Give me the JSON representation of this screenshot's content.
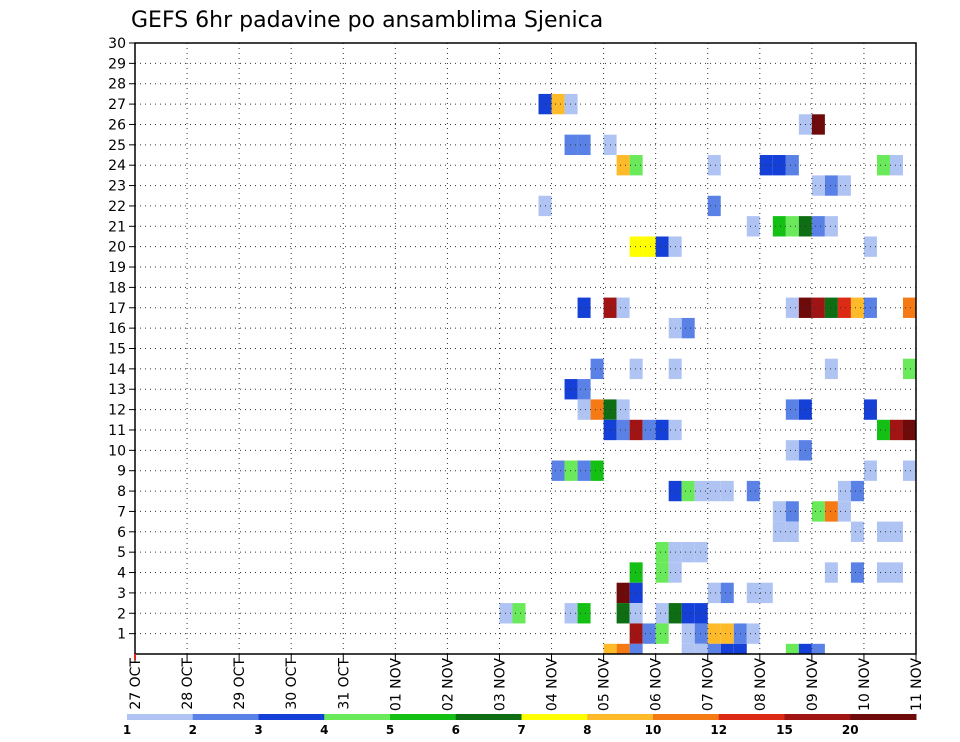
{
  "chart_data": {
    "type": "heatmap",
    "title": "GEFS 6hr padavine po ansamblima Sjenica",
    "x_tick_labels": [
      "27 OCT",
      "28 OCT",
      "29 OCT",
      "30 OCT",
      "31 OCT",
      "01 NOV",
      "02 NOV",
      "03 NOV",
      "04 NOV",
      "05 NOV",
      "06 NOV",
      "07 NOV",
      "08 NOV",
      "09 NOV",
      "10 NOV",
      "11 NOV"
    ],
    "xlim": [
      0,
      15
    ],
    "ylim": [
      0,
      30
    ],
    "y_ticks": [
      1,
      2,
      3,
      4,
      5,
      6,
      7,
      8,
      9,
      10,
      11,
      12,
      13,
      14,
      15,
      16,
      17,
      18,
      19,
      20,
      21,
      22,
      23,
      24,
      25,
      26,
      27,
      28,
      29,
      30
    ],
    "grid": true,
    "colorbar": {
      "placement": "bottom",
      "labels": [
        "1",
        "2",
        "3",
        "4",
        "5",
        "6",
        "7",
        "8",
        "10",
        "12",
        "15",
        "20"
      ],
      "colors": [
        "#b0c4f4",
        "#5a82e6",
        "#1540d8",
        "#6aea5a",
        "#14c014",
        "#0f6e14",
        "#ffff00",
        "#ffba2a",
        "#f57a14",
        "#dc2a14",
        "#a01414",
        "#6e0a0a"
      ]
    },
    "cell_width_days": 0.25,
    "cells": [
      {
        "m": 27,
        "d": 7.75,
        "v": 3
      },
      {
        "m": 27,
        "d": 8.0,
        "v": 8
      },
      {
        "m": 27,
        "d": 8.25,
        "v": 1
      },
      {
        "m": 26,
        "d": 12.75,
        "v": 1
      },
      {
        "m": 26,
        "d": 13.0,
        "v": 20
      },
      {
        "m": 25,
        "d": 8.25,
        "v": 2
      },
      {
        "m": 25,
        "d": 8.5,
        "v": 2
      },
      {
        "m": 25,
        "d": 9.0,
        "v": 1
      },
      {
        "m": 24,
        "d": 9.25,
        "v": 8
      },
      {
        "m": 24,
        "d": 9.5,
        "v": 4
      },
      {
        "m": 24,
        "d": 11.0,
        "v": 1
      },
      {
        "m": 24,
        "d": 12.0,
        "v": 3
      },
      {
        "m": 24,
        "d": 12.25,
        "v": 3
      },
      {
        "m": 24,
        "d": 12.5,
        "v": 2
      },
      {
        "m": 24,
        "d": 14.25,
        "v": 4
      },
      {
        "m": 24,
        "d": 14.5,
        "v": 1
      },
      {
        "m": 23,
        "d": 13.0,
        "v": 1
      },
      {
        "m": 23,
        "d": 13.25,
        "v": 2
      },
      {
        "m": 23,
        "d": 13.5,
        "v": 1
      },
      {
        "m": 22,
        "d": 7.75,
        "v": 1
      },
      {
        "m": 22,
        "d": 11.0,
        "v": 2
      },
      {
        "m": 21,
        "d": 11.75,
        "v": 1
      },
      {
        "m": 21,
        "d": 12.25,
        "v": 5
      },
      {
        "m": 21,
        "d": 12.5,
        "v": 4
      },
      {
        "m": 21,
        "d": 12.75,
        "v": 6
      },
      {
        "m": 21,
        "d": 13.0,
        "v": 2
      },
      {
        "m": 21,
        "d": 13.25,
        "v": 1
      },
      {
        "m": 20,
        "d": 9.5,
        "v": 7
      },
      {
        "m": 20,
        "d": 9.75,
        "v": 7
      },
      {
        "m": 20,
        "d": 10.0,
        "v": 3
      },
      {
        "m": 20,
        "d": 10.25,
        "v": 1
      },
      {
        "m": 20,
        "d": 14.0,
        "v": 1
      },
      {
        "m": 17,
        "d": 8.5,
        "v": 3
      },
      {
        "m": 17,
        "d": 9.0,
        "v": 15
      },
      {
        "m": 17,
        "d": 9.25,
        "v": 1
      },
      {
        "m": 17,
        "d": 12.5,
        "v": 1
      },
      {
        "m": 17,
        "d": 12.75,
        "v": 20
      },
      {
        "m": 17,
        "d": 13.0,
        "v": 15
      },
      {
        "m": 17,
        "d": 13.25,
        "v": 6
      },
      {
        "m": 17,
        "d": 13.5,
        "v": 12
      },
      {
        "m": 17,
        "d": 13.75,
        "v": 8
      },
      {
        "m": 17,
        "d": 14.0,
        "v": 2
      },
      {
        "m": 17,
        "d": 14.75,
        "v": 10
      },
      {
        "m": 16,
        "d": 10.25,
        "v": 1
      },
      {
        "m": 16,
        "d": 10.5,
        "v": 2
      },
      {
        "m": 14,
        "d": 8.75,
        "v": 2
      },
      {
        "m": 14,
        "d": 9.5,
        "v": 1
      },
      {
        "m": 14,
        "d": 10.25,
        "v": 1
      },
      {
        "m": 14,
        "d": 13.25,
        "v": 1
      },
      {
        "m": 14,
        "d": 14.75,
        "v": 4
      },
      {
        "m": 13,
        "d": 8.25,
        "v": 3
      },
      {
        "m": 13,
        "d": 8.5,
        "v": 2
      },
      {
        "m": 12,
        "d": 8.5,
        "v": 1
      },
      {
        "m": 12,
        "d": 8.75,
        "v": 10
      },
      {
        "m": 12,
        "d": 9.0,
        "v": 6
      },
      {
        "m": 12,
        "d": 9.25,
        "v": 1
      },
      {
        "m": 12,
        "d": 12.5,
        "v": 2
      },
      {
        "m": 12,
        "d": 12.75,
        "v": 3
      },
      {
        "m": 12,
        "d": 14.0,
        "v": 3
      },
      {
        "m": 11,
        "d": 9.0,
        "v": 3
      },
      {
        "m": 11,
        "d": 9.25,
        "v": 2
      },
      {
        "m": 11,
        "d": 9.5,
        "v": 15
      },
      {
        "m": 11,
        "d": 9.75,
        "v": 2
      },
      {
        "m": 11,
        "d": 10.0,
        "v": 3
      },
      {
        "m": 11,
        "d": 10.25,
        "v": 1
      },
      {
        "m": 11,
        "d": 14.25,
        "v": 5
      },
      {
        "m": 11,
        "d": 14.5,
        "v": 15
      },
      {
        "m": 11,
        "d": 14.75,
        "v": 20
      },
      {
        "m": 10,
        "d": 12.5,
        "v": 1
      },
      {
        "m": 10,
        "d": 12.75,
        "v": 2
      },
      {
        "m": 9,
        "d": 8.0,
        "v": 2
      },
      {
        "m": 9,
        "d": 8.25,
        "v": 4
      },
      {
        "m": 9,
        "d": 8.5,
        "v": 2
      },
      {
        "m": 9,
        "d": 8.75,
        "v": 5
      },
      {
        "m": 9,
        "d": 14.0,
        "v": 1
      },
      {
        "m": 9,
        "d": 14.75,
        "v": 1
      },
      {
        "m": 8,
        "d": 10.25,
        "v": 3
      },
      {
        "m": 8,
        "d": 10.5,
        "v": 4
      },
      {
        "m": 8,
        "d": 10.75,
        "v": 1
      },
      {
        "m": 8,
        "d": 11.0,
        "v": 1
      },
      {
        "m": 8,
        "d": 11.25,
        "v": 1
      },
      {
        "m": 8,
        "d": 11.75,
        "v": 2
      },
      {
        "m": 8,
        "d": 13.5,
        "v": 1
      },
      {
        "m": 8,
        "d": 13.75,
        "v": 2
      },
      {
        "m": 7,
        "d": 12.25,
        "v": 1
      },
      {
        "m": 7,
        "d": 12.5,
        "v": 2
      },
      {
        "m": 7,
        "d": 13.0,
        "v": 4
      },
      {
        "m": 7,
        "d": 13.25,
        "v": 10
      },
      {
        "m": 7,
        "d": 13.5,
        "v": 1
      },
      {
        "m": 6,
        "d": 12.25,
        "v": 1
      },
      {
        "m": 6,
        "d": 12.5,
        "v": 1
      },
      {
        "m": 6,
        "d": 13.75,
        "v": 1
      },
      {
        "m": 6,
        "d": 14.25,
        "v": 1
      },
      {
        "m": 6,
        "d": 14.5,
        "v": 1
      },
      {
        "m": 5,
        "d": 10.0,
        "v": 4
      },
      {
        "m": 5,
        "d": 10.25,
        "v": 1
      },
      {
        "m": 5,
        "d": 10.5,
        "v": 1
      },
      {
        "m": 5,
        "d": 10.75,
        "v": 1
      },
      {
        "m": 4,
        "d": 9.5,
        "v": 5
      },
      {
        "m": 4,
        "d": 10.0,
        "v": 4
      },
      {
        "m": 4,
        "d": 10.25,
        "v": 1
      },
      {
        "m": 4,
        "d": 13.25,
        "v": 1
      },
      {
        "m": 4,
        "d": 13.75,
        "v": 2
      },
      {
        "m": 4,
        "d": 14.25,
        "v": 1
      },
      {
        "m": 4,
        "d": 14.5,
        "v": 1
      },
      {
        "m": 3,
        "d": 9.25,
        "v": 20
      },
      {
        "m": 3,
        "d": 9.5,
        "v": 3
      },
      {
        "m": 3,
        "d": 11.0,
        "v": 1
      },
      {
        "m": 3,
        "d": 11.25,
        "v": 2
      },
      {
        "m": 3,
        "d": 11.75,
        "v": 1
      },
      {
        "m": 3,
        "d": 12.0,
        "v": 1
      },
      {
        "m": 2,
        "d": 7.0,
        "v": 1
      },
      {
        "m": 2,
        "d": 7.25,
        "v": 4
      },
      {
        "m": 2,
        "d": 8.25,
        "v": 1
      },
      {
        "m": 2,
        "d": 8.5,
        "v": 5
      },
      {
        "m": 2,
        "d": 9.25,
        "v": 6
      },
      {
        "m": 2,
        "d": 9.5,
        "v": 1
      },
      {
        "m": 2,
        "d": 10.0,
        "v": 1
      },
      {
        "m": 2,
        "d": 10.25,
        "v": 6
      },
      {
        "m": 2,
        "d": 10.5,
        "v": 3
      },
      {
        "m": 2,
        "d": 10.75,
        "v": 3
      },
      {
        "m": 1,
        "d": 9.5,
        "v": 15
      },
      {
        "m": 1,
        "d": 9.75,
        "v": 2
      },
      {
        "m": 1,
        "d": 10.0,
        "v": 4
      },
      {
        "m": 1,
        "d": 10.5,
        "v": 1
      },
      {
        "m": 1,
        "d": 10.75,
        "v": 2
      },
      {
        "m": 1,
        "d": 11.0,
        "v": 8
      },
      {
        "m": 1,
        "d": 11.25,
        "v": 8
      },
      {
        "m": 1,
        "d": 11.5,
        "v": 2
      },
      {
        "m": 1,
        "d": 11.75,
        "v": 1
      },
      {
        "m": 0,
        "d": 9.0,
        "v": 8
      },
      {
        "m": 0,
        "d": 9.25,
        "v": 10
      },
      {
        "m": 0,
        "d": 9.5,
        "v": 2
      },
      {
        "m": 0,
        "d": 10.5,
        "v": 1
      },
      {
        "m": 0,
        "d": 10.75,
        "v": 1
      },
      {
        "m": 0,
        "d": 11.0,
        "v": 2
      },
      {
        "m": 0,
        "d": 11.25,
        "v": 3
      },
      {
        "m": 0,
        "d": 11.5,
        "v": 3
      },
      {
        "m": 0,
        "d": 12.5,
        "v": 4
      },
      {
        "m": 0,
        "d": 12.75,
        "v": 3
      },
      {
        "m": 0,
        "d": 13.0,
        "v": 2
      }
    ]
  }
}
